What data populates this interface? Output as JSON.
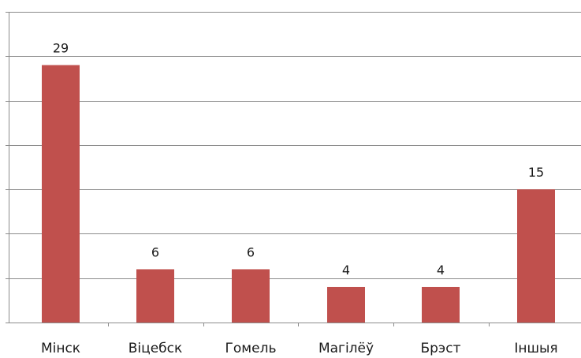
{
  "chart_data": {
    "type": "bar",
    "categories": [
      "Мінск",
      "Віцебск",
      "Гомель",
      "Магілёў",
      "Брэст",
      "Іншыя"
    ],
    "values": [
      29,
      6,
      6,
      4,
      4,
      15
    ],
    "title": "",
    "xlabel": "",
    "ylabel": "",
    "ylim": [
      0,
      35
    ],
    "grid": true,
    "gridline_step": 5,
    "legend": "none",
    "bar_color": "#c0504d",
    "data_labels": true
  }
}
